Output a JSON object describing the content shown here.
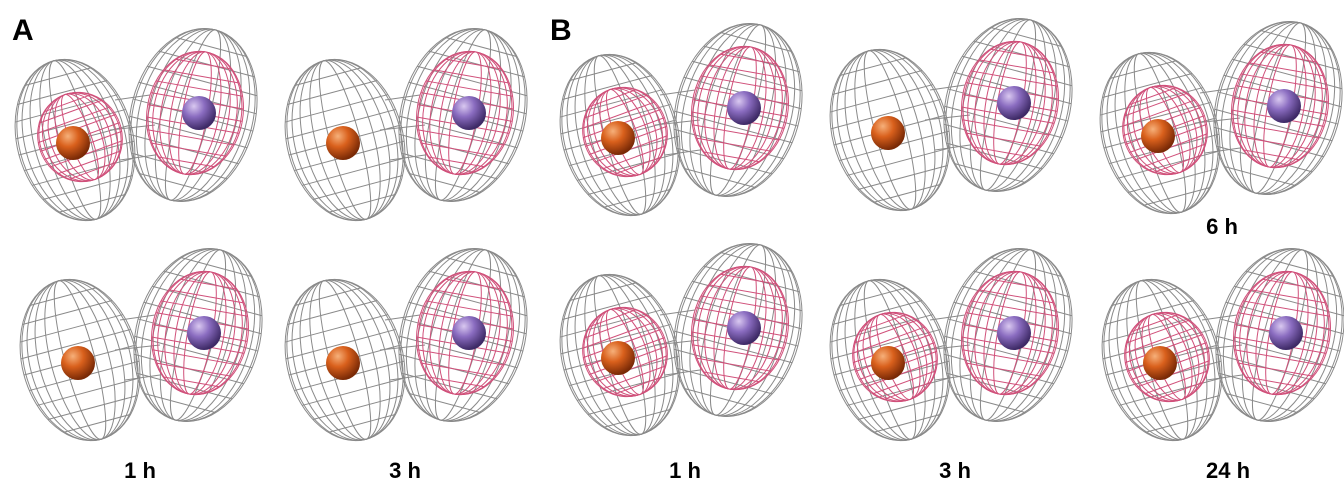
{
  "panels": [
    {
      "label": "A",
      "times": [
        "1 h",
        "3 h"
      ]
    },
    {
      "label": "B",
      "times": [
        "1 h",
        "3 h",
        "24 h"
      ],
      "extra_time": "6 h"
    }
  ]
}
